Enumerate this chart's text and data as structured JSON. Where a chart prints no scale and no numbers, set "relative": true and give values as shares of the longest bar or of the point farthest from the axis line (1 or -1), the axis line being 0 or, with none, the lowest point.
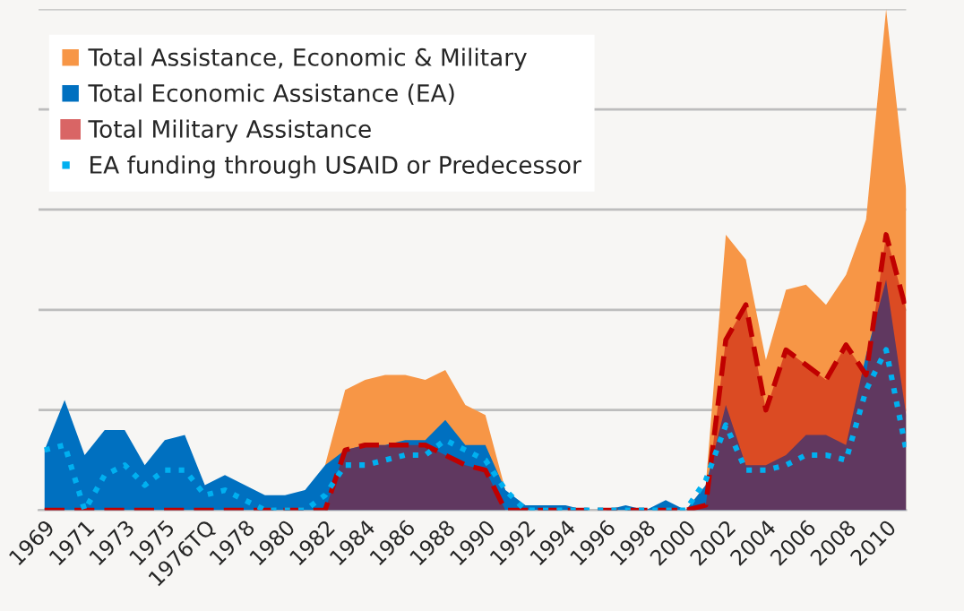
{
  "chart_data": {
    "type": "area",
    "relative": true,
    "grid": "y",
    "legend": "top left",
    "categories": [
      "1969",
      null,
      "1971",
      null,
      "1973",
      null,
      "1975",
      null,
      "1976TQ",
      null,
      "1978",
      null,
      "1980",
      null,
      "1982",
      null,
      "1984",
      null,
      "1986",
      null,
      "1988",
      null,
      "1990",
      null,
      "1992",
      null,
      "1994",
      null,
      "1996",
      null,
      "1998",
      null,
      "2000",
      null,
      "2002",
      null,
      "2004",
      null,
      "2006",
      null,
      "2008",
      null,
      "2010",
      null
    ],
    "series": [
      {
        "name": "Total Assistance, Economic & Military",
        "color": "#f79646",
        "values": [
          null,
          null,
          null,
          null,
          null,
          null,
          null,
          null,
          null,
          null,
          null,
          null,
          null,
          null,
          0.09,
          0.24,
          0.26,
          0.27,
          0.27,
          0.26,
          0.28,
          0.21,
          0.19,
          0.04,
          null,
          null,
          null,
          null,
          null,
          null,
          null,
          null,
          0,
          0.05,
          0.55,
          0.5,
          0.3,
          0.44,
          0.45,
          0.41,
          0.47,
          0.58,
          1,
          0.64
        ]
      },
      {
        "name": "Total Economic Assistance (EA)",
        "color": "#0070c0",
        "values": [
          0.12,
          0.22,
          0.11,
          0.16,
          0.16,
          0.09,
          0.14,
          0.15,
          0.05,
          0.07,
          0.05,
          0.03,
          0.03,
          0.04,
          0.09,
          0.12,
          0.13,
          0.13,
          0.14,
          0.14,
          0.18,
          0.13,
          0.13,
          0.04,
          0.01,
          0.01,
          0.01,
          0,
          0,
          0.01,
          0,
          0.02,
          0,
          0.05,
          0.21,
          0.09,
          0.09,
          0.11,
          0.15,
          0.15,
          0.13,
          0.31,
          0.46,
          0.19
        ]
      },
      {
        "name": "Total Military Assistance",
        "color": "#c00000",
        "line_style": "dashed",
        "values": [
          0,
          0,
          0,
          0,
          0,
          0,
          0,
          0,
          0,
          0,
          0,
          0,
          0,
          0,
          0,
          0.12,
          0.13,
          0.13,
          0.13,
          0.13,
          0.11,
          0.09,
          0.08,
          0,
          0,
          0,
          0,
          0,
          0,
          0,
          0,
          0,
          0,
          0.01,
          0.34,
          0.41,
          0.2,
          0.32,
          0.29,
          0.26,
          0.33,
          0.27,
          0.55,
          0.4
        ]
      },
      {
        "name": "EA funding through USAID or Predecessor",
        "type": "line",
        "color": "#00b0f0",
        "line_style": "dotted",
        "values": [
          0.12,
          0.13,
          0,
          0.07,
          0.09,
          0.05,
          0.08,
          0.08,
          0.03,
          0.04,
          0.02,
          0,
          0,
          0,
          0.03,
          0.09,
          0.09,
          0.1,
          0.11,
          0.11,
          0.14,
          0.12,
          0.1,
          0.04,
          0,
          0,
          0,
          0,
          0,
          0,
          0,
          0,
          0,
          0.06,
          0.17,
          0.08,
          0.08,
          0.09,
          0.11,
          0.11,
          0.1,
          0.24,
          0.32,
          0.12
        ]
      }
    ]
  }
}
